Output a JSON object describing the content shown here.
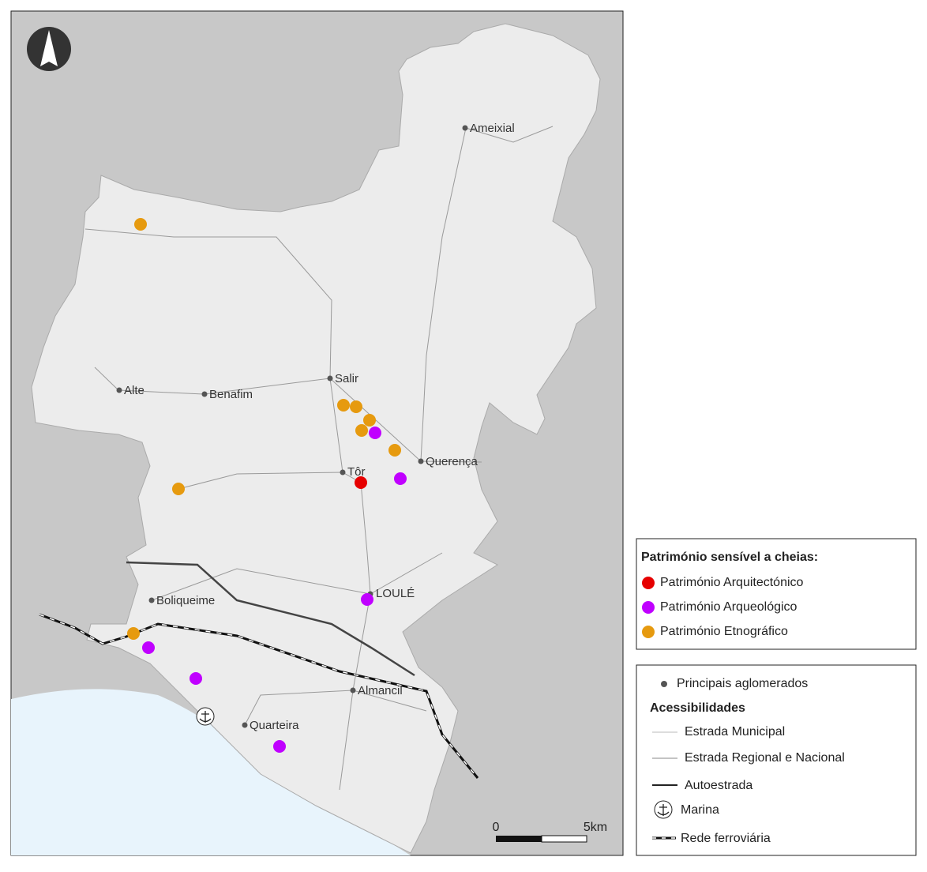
{
  "places": [
    "Ameixial",
    "Salir",
    "Alte",
    "Benafim",
    "Querença",
    "Tôr",
    "LOULÉ",
    "Boliqueime",
    "Almancil",
    "Quarteira"
  ],
  "legend_heritage": {
    "title": "Património sensível a cheias:",
    "items": [
      "Património Arquitectónico",
      "Património Arqueológico",
      "Património Etnográfico"
    ]
  },
  "legend_other": {
    "settlements": "Principais aglomerados",
    "access_title": "Acessibilidades",
    "items": [
      "Estrada Municipal",
      "Estrada Regional e Nacional",
      "Autoestrada",
      "Marina",
      "Rede ferroviária"
    ]
  },
  "scale": {
    "start": "0",
    "end": "5km"
  }
}
